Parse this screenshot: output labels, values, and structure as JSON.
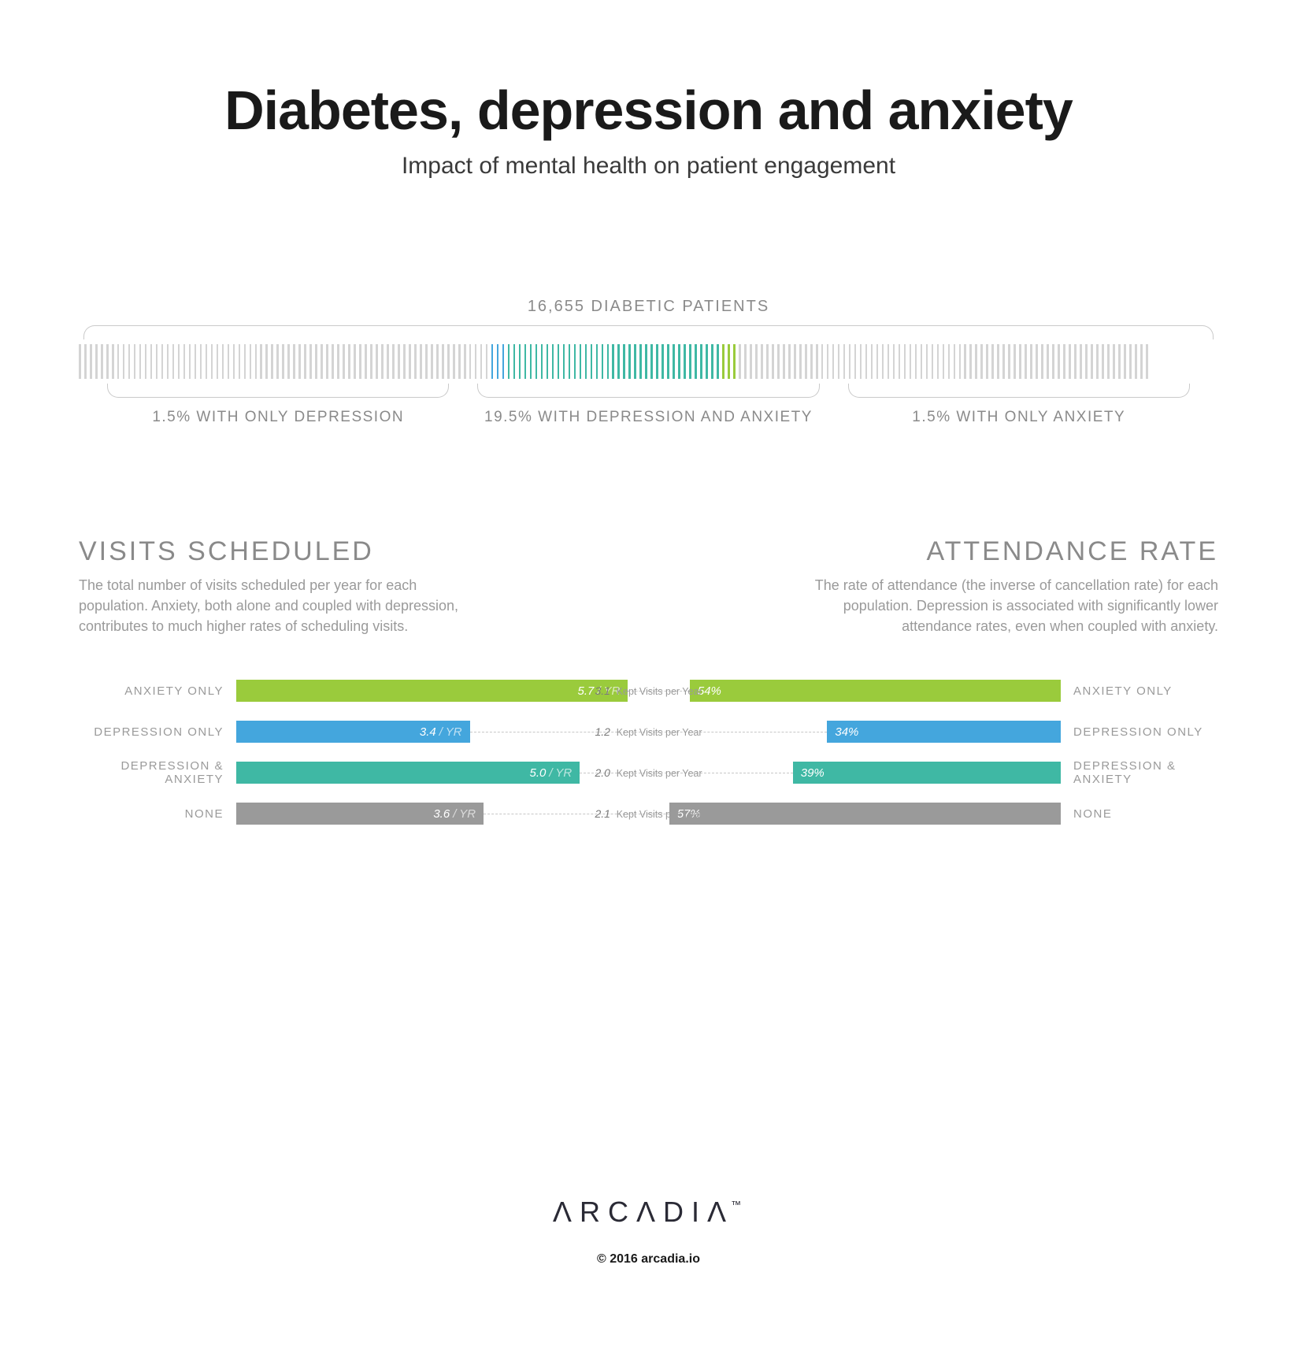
{
  "title": "Diabetes, depression and anxiety",
  "subtitle": "Impact of mental health on patient engagement",
  "population": {
    "header": "16,655 DIABETIC PATIENTS",
    "tick_color_neutral": "#d4d4d4",
    "segments": [
      {
        "label": "1.5% WITH ONLY DEPRESSION",
        "color": "#44a6dd",
        "tick_count": 3,
        "brace_width_pct": 30
      },
      {
        "label": "19.5% WITH DEPRESSION AND ANXIETY",
        "color": "#3fb8a4",
        "tick_count": 39,
        "brace_width_pct": 30
      },
      {
        "label": "1.5% WITH ONLY ANXIETY",
        "color": "#9acb3c",
        "tick_count": 3,
        "brace_width_pct": 30
      }
    ],
    "neutral_left_ticks": 75,
    "neutral_right_ticks": 75
  },
  "panels": {
    "left": {
      "title": "VISITS SCHEDULED",
      "desc": "The total number of visits scheduled per year for each population. Anxiety, both alone and coupled with depression, contributes to much higher rates of scheduling visits.",
      "unit": "/ YR",
      "max": 6.0
    },
    "right": {
      "title": "ATTENDANCE RATE",
      "desc": "The rate of attendance (the inverse of cancellation rate) for each population. Depression is associated with significantly lower attendance rates, even when coupled with anxiety.",
      "unit": "%",
      "max": 60
    },
    "rows": [
      {
        "label": "ANXIETY ONLY",
        "color": "#9acb3c",
        "visits": 5.7,
        "visits_display": "5.7",
        "rate": 54,
        "rate_display": "54%",
        "kept": "3.1",
        "kept_label": "Kept Visits per Year"
      },
      {
        "label": "DEPRESSION ONLY",
        "color": "#44a6dd",
        "visits": 3.4,
        "visits_display": "3.4",
        "rate": 34,
        "rate_display": "34%",
        "kept": "1.2",
        "kept_label": "Kept Visits per Year"
      },
      {
        "label": "DEPRESSION & ANXIETY",
        "color": "#3fb8a4",
        "visits": 5.0,
        "visits_display": "5.0",
        "rate": 39,
        "rate_display": "39%",
        "kept": "2.0",
        "kept_label": "Kept Visits per Year"
      },
      {
        "label": "NONE",
        "color": "#9a9a9a",
        "visits": 3.6,
        "visits_display": "3.6",
        "rate": 57,
        "rate_display": "57%",
        "kept": "2.1",
        "kept_label": "Kept Visits per Year"
      }
    ]
  },
  "footer": {
    "logo_text": "ΛRCΛDIΛ",
    "logo_tm": "™",
    "copyright": "© 2016 arcadia.io"
  },
  "colors": {
    "background": "#ffffff",
    "text_primary": "#1a1a1a",
    "text_muted": "#8a8a8a",
    "dash": "#c7c7c7"
  }
}
